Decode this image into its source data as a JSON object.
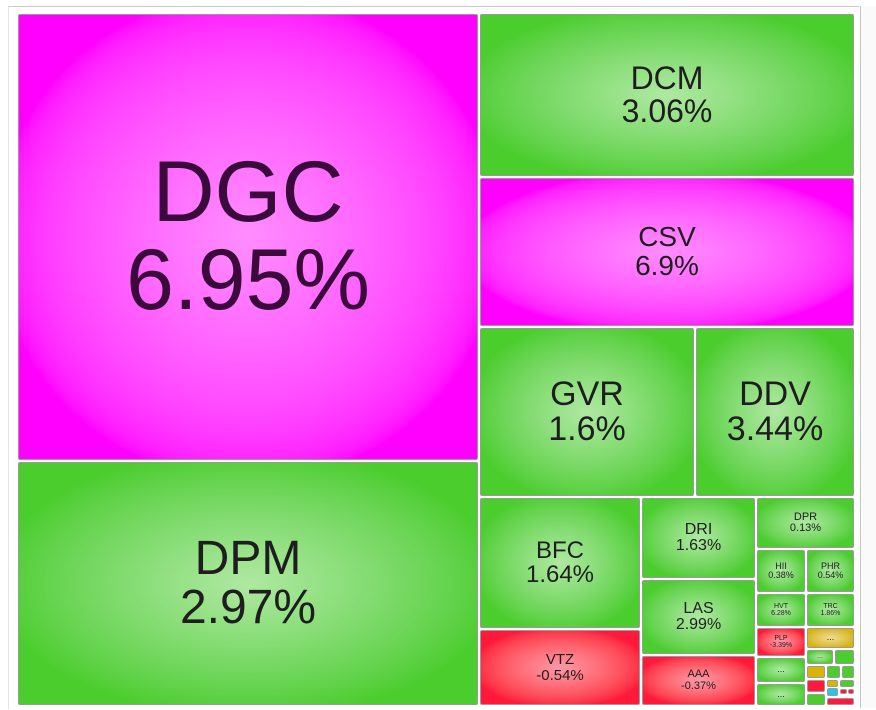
{
  "tiles": [
    {
      "ticker": "DGC",
      "change": "6.95%",
      "color": "#ff00ff"
    },
    {
      "ticker": "DPM",
      "change": "2.97%",
      "color": "#4ccd2e"
    },
    {
      "ticker": "DCM",
      "change": "3.06%",
      "color": "#4ccd2e"
    },
    {
      "ticker": "CSV",
      "change": "6.9%",
      "color": "#ff00ff"
    },
    {
      "ticker": "GVR",
      "change": "1.6%",
      "color": "#4ccd2e"
    },
    {
      "ticker": "DDV",
      "change": "3.44%",
      "color": "#4ccd2e"
    },
    {
      "ticker": "BFC",
      "change": "1.64%",
      "color": "#4ccd2e"
    },
    {
      "ticker": "VTZ",
      "change": "-0.54%",
      "color": "#ff1a3c"
    },
    {
      "ticker": "DRI",
      "change": "1.63%",
      "color": "#4ccd2e"
    },
    {
      "ticker": "LAS",
      "change": "2.99%",
      "color": "#4ccd2e"
    },
    {
      "ticker": "AAA",
      "change": "-0.37%",
      "color": "#ff1a3c"
    },
    {
      "ticker": "DPR",
      "change": "0.13%",
      "color": "#4ccd2e"
    },
    {
      "ticker": "HII",
      "change": "0.38%",
      "color": "#4ccd2e"
    },
    {
      "ticker": "PHR",
      "change": "0.54%",
      "color": "#4ccd2e"
    },
    {
      "ticker": "HVT",
      "change": "6.28%",
      "color": "#4ccd2e"
    },
    {
      "ticker": "TRC",
      "change": "1.86%",
      "color": "#4ccd2e"
    },
    {
      "ticker": "PLP",
      "change": "-3.39%",
      "color": "#ff1a3c"
    },
    {
      "ticker": "...",
      "color": "#d9b400"
    },
    {
      "ticker": "...",
      "color": "#4ccd2e"
    },
    {
      "ticker": "...",
      "color": "#4ccd2e"
    },
    {
      "ticker": "...",
      "color": "#4ccd2e"
    }
  ]
}
